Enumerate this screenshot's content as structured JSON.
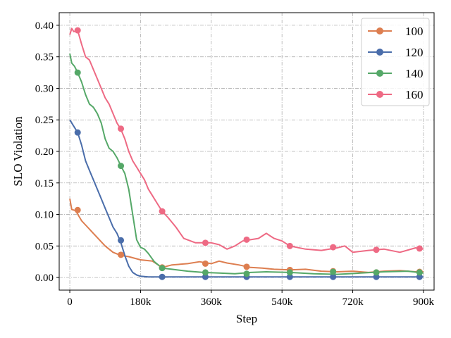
{
  "chart_data": {
    "type": "line",
    "title": "",
    "xlabel": "Step",
    "ylabel": "SLO Violation",
    "xlim": [
      -27000,
      927000
    ],
    "ylim": [
      -0.02,
      0.42
    ],
    "xticks": [
      0,
      180000,
      360000,
      540000,
      720000,
      900000
    ],
    "xtick_labels": [
      "0",
      "180k",
      "360k",
      "540k",
      "720k",
      "900k"
    ],
    "yticks": [
      0.0,
      0.05,
      0.1,
      0.15,
      0.2,
      0.25,
      0.3,
      0.35,
      0.4
    ],
    "ytick_labels": [
      "0.00",
      "0.05",
      "0.10",
      "0.15",
      "0.20",
      "0.25",
      "0.30",
      "0.35",
      "0.40"
    ],
    "grid": true,
    "legend": "top-right",
    "series": [
      {
        "name": "100",
        "color": "#dd7e50",
        "x": [
          0,
          5000,
          15000,
          30000,
          45000,
          60000,
          75000,
          90000,
          110000,
          130000,
          150000,
          180000,
          210000,
          235000,
          260000,
          300000,
          330000,
          360000,
          380000,
          400000,
          430000,
          460000,
          490000,
          520000,
          560000,
          600000,
          640000,
          680000,
          720000,
          760000,
          800000,
          840000,
          880000,
          900000
        ],
        "y": [
          0.125,
          0.108,
          0.106,
          0.09,
          0.08,
          0.07,
          0.06,
          0.05,
          0.04,
          0.035,
          0.033,
          0.028,
          0.026,
          0.016,
          0.02,
          0.022,
          0.025,
          0.022,
          0.026,
          0.023,
          0.02,
          0.016,
          0.015,
          0.013,
          0.012,
          0.013,
          0.01,
          0.009,
          0.01,
          0.008,
          0.01,
          0.011,
          0.009,
          0.009
        ],
        "markers_x": [
          20000,
          130000,
          235000,
          345000,
          450000,
          560000,
          670000,
          780000,
          890000
        ],
        "markers_y": [
          0.107,
          0.036,
          0.016,
          0.022,
          0.017,
          0.012,
          0.01,
          0.008,
          0.009
        ]
      },
      {
        "name": "120",
        "color": "#4a6daa",
        "x": [
          0,
          10000,
          20000,
          30000,
          40000,
          50000,
          60000,
          70000,
          80000,
          90000,
          100000,
          110000,
          120000,
          130000,
          140000,
          150000,
          160000,
          170000,
          180000,
          200000,
          220000,
          240000,
          300000,
          400000,
          500000,
          600000,
          700000,
          800000,
          900000
        ],
        "y": [
          0.25,
          0.24,
          0.23,
          0.21,
          0.185,
          0.17,
          0.155,
          0.14,
          0.125,
          0.11,
          0.095,
          0.08,
          0.07,
          0.055,
          0.035,
          0.018,
          0.008,
          0.004,
          0.002,
          0.001,
          0.001,
          0.001,
          0.001,
          0.001,
          0.001,
          0.001,
          0.001,
          0.001,
          0.001
        ],
        "markers_x": [
          20000,
          130000,
          235000,
          345000,
          450000,
          560000,
          670000,
          780000,
          890000
        ],
        "markers_y": [
          0.23,
          0.059,
          0.001,
          0.001,
          0.001,
          0.001,
          0.001,
          0.001,
          0.001
        ]
      },
      {
        "name": "140",
        "color": "#55a868",
        "x": [
          0,
          5000,
          12000,
          20000,
          30000,
          40000,
          50000,
          60000,
          70000,
          80000,
          90000,
          100000,
          110000,
          120000,
          130000,
          140000,
          150000,
          160000,
          170000,
          180000,
          190000,
          200000,
          215000,
          235000,
          260000,
          300000,
          340000,
          380000,
          420000,
          460000,
          500000,
          560000,
          620000,
          680000,
          740000,
          800000,
          860000,
          900000
        ],
        "y": [
          0.355,
          0.34,
          0.335,
          0.325,
          0.31,
          0.29,
          0.275,
          0.27,
          0.26,
          0.245,
          0.22,
          0.205,
          0.2,
          0.19,
          0.177,
          0.165,
          0.14,
          0.1,
          0.06,
          0.048,
          0.045,
          0.038,
          0.025,
          0.015,
          0.013,
          0.01,
          0.008,
          0.007,
          0.006,
          0.008,
          0.009,
          0.008,
          0.006,
          0.005,
          0.007,
          0.009,
          0.01,
          0.007
        ],
        "markers_x": [
          20000,
          130000,
          235000,
          345000,
          450000,
          560000,
          670000,
          780000,
          890000
        ],
        "markers_y": [
          0.325,
          0.177,
          0.015,
          0.008,
          0.006,
          0.008,
          0.009,
          0.008,
          0.008
        ]
      },
      {
        "name": "160",
        "color": "#ee6a84",
        "x": [
          0,
          5000,
          10000,
          20000,
          30000,
          40000,
          50000,
          60000,
          70000,
          80000,
          90000,
          100000,
          110000,
          120000,
          130000,
          140000,
          150000,
          160000,
          170000,
          180000,
          190000,
          200000,
          210000,
          220000,
          235000,
          250000,
          270000,
          290000,
          320000,
          340000,
          360000,
          380000,
          400000,
          420000,
          440000,
          460000,
          480000,
          500000,
          520000,
          540000,
          560000,
          600000,
          640000,
          680000,
          700000,
          720000,
          760000,
          800000,
          840000,
          880000,
          900000
        ],
        "y": [
          0.385,
          0.395,
          0.39,
          0.392,
          0.37,
          0.35,
          0.345,
          0.33,
          0.315,
          0.3,
          0.285,
          0.275,
          0.26,
          0.245,
          0.235,
          0.22,
          0.2,
          0.185,
          0.175,
          0.165,
          0.155,
          0.14,
          0.13,
          0.12,
          0.105,
          0.095,
          0.08,
          0.062,
          0.055,
          0.055,
          0.055,
          0.052,
          0.045,
          0.05,
          0.058,
          0.06,
          0.062,
          0.07,
          0.062,
          0.058,
          0.05,
          0.045,
          0.043,
          0.047,
          0.05,
          0.04,
          0.043,
          0.045,
          0.04,
          0.047,
          0.045
        ],
        "markers_x": [
          20000,
          130000,
          235000,
          345000,
          450000,
          560000,
          670000,
          780000,
          890000
        ],
        "markers_y": [
          0.392,
          0.236,
          0.105,
          0.055,
          0.06,
          0.05,
          0.048,
          0.044,
          0.046
        ]
      }
    ]
  }
}
